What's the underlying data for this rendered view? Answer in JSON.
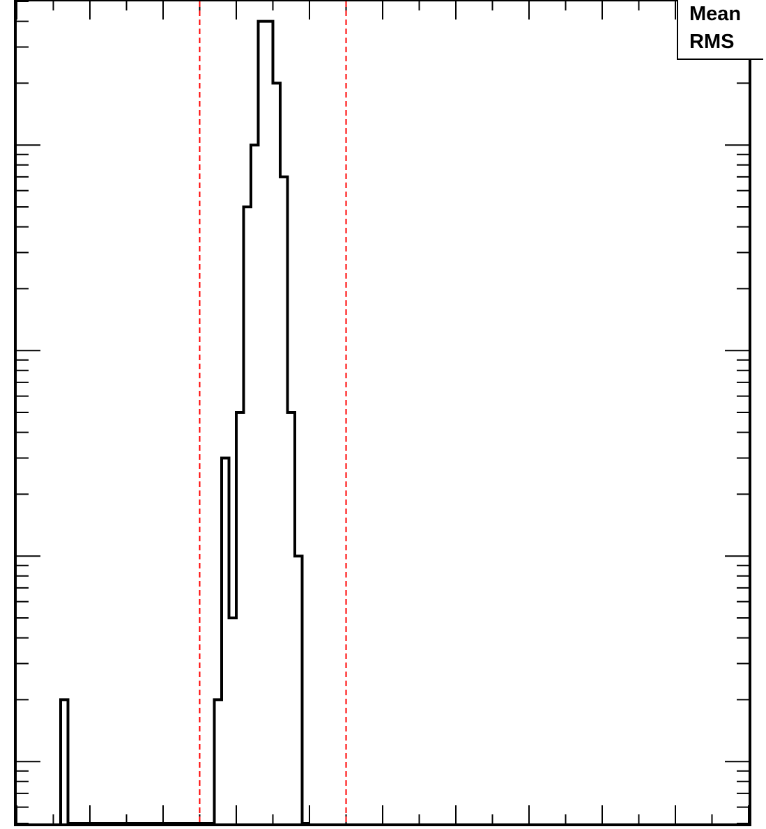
{
  "chart_data": {
    "type": "bar",
    "title": "",
    "xlabel": "",
    "ylabel": "",
    "x_range": [
      0,
      100
    ],
    "y_scale": "log",
    "y_range": [
      0.5,
      5000
    ],
    "bins": {
      "edges": [
        6,
        7,
        27,
        28,
        29,
        30,
        31,
        32,
        33,
        34,
        35,
        36,
        37,
        38,
        39,
        40
      ],
      "counts": [
        2,
        0,
        2,
        30,
        5,
        50,
        500,
        1000,
        4000,
        4000,
        2000,
        700,
        50,
        10,
        0
      ]
    },
    "reference_lines": [
      {
        "x": 25,
        "color": "#ff0000",
        "style": "dashed"
      },
      {
        "x": 45,
        "color": "#ff0000",
        "style": "dashed"
      }
    ],
    "line_color": "#000000"
  },
  "stats": {
    "mean_label": "Mean",
    "rms_label": "RMS"
  }
}
